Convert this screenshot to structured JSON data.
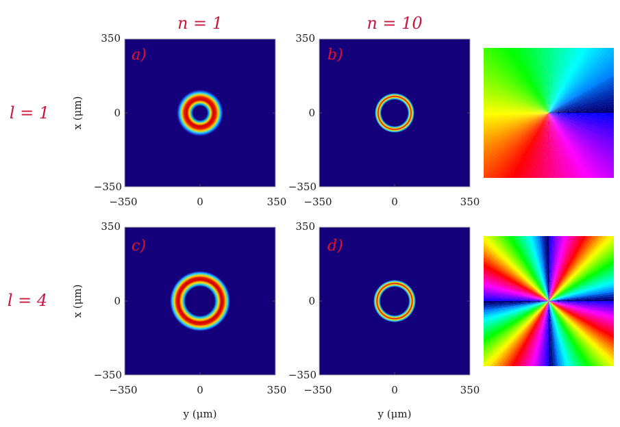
{
  "figure": {
    "column_headers": [
      "n = 1",
      "n = 10"
    ],
    "row_headers": [
      "l = 1",
      "l = 4"
    ],
    "x_axis_label": "y (μm)",
    "y_axis_label": "x (μm)",
    "tick_labels": {
      "min": "−350",
      "mid": "0",
      "max": "350"
    },
    "panels": [
      {
        "letter": "a)",
        "n": 1,
        "l": 1
      },
      {
        "letter": "b)",
        "n": 10,
        "l": 1
      },
      {
        "letter": "c)",
        "n": 1,
        "l": 4
      },
      {
        "letter": "d)",
        "n": 10,
        "l": 4
      }
    ],
    "colors": {
      "background": "#14007a",
      "accent_text": "#c8163f",
      "panel_letter": "#e8102a"
    }
  },
  "chart_data": [
    {
      "type": "heatmap",
      "panel": "a)",
      "xlabel": "",
      "ylabel": "x (μm)",
      "xlim": [
        -350,
        350
      ],
      "ylim": [
        -350,
        350
      ],
      "colormap": "jet",
      "ring_center": [
        0,
        0
      ],
      "ring_radius": 40,
      "ring_width": 45
    },
    {
      "type": "heatmap",
      "panel": "b)",
      "xlabel": "",
      "ylabel": "",
      "xlim": [
        -350,
        350
      ],
      "ylim": [
        -350,
        350
      ],
      "colormap": "jet",
      "ring_center": [
        0,
        0
      ],
      "ring_radius": 45,
      "ring_width": 14
    },
    {
      "type": "heatmap",
      "panel": "c)",
      "xlabel": "y (μm)",
      "ylabel": "x (μm)",
      "xlim": [
        -350,
        350
      ],
      "ylim": [
        -350,
        350
      ],
      "colormap": "jet",
      "ring_center": [
        0,
        0
      ],
      "ring_radius": 60,
      "ring_width": 40
    },
    {
      "type": "heatmap",
      "panel": "d)",
      "xlabel": "y (μm)",
      "ylabel": "",
      "xlim": [
        -350,
        350
      ],
      "ylim": [
        -350,
        350
      ],
      "colormap": "jet",
      "ring_center": [
        0,
        0
      ],
      "ring_radius": 45,
      "ring_width": 14
    },
    {
      "type": "heatmap",
      "kind": "phase",
      "row": "l = 1",
      "charge": 1,
      "colormap": "hue"
    },
    {
      "type": "heatmap",
      "kind": "phase",
      "row": "l = 4",
      "charge": 4,
      "colormap": "hue"
    }
  ]
}
